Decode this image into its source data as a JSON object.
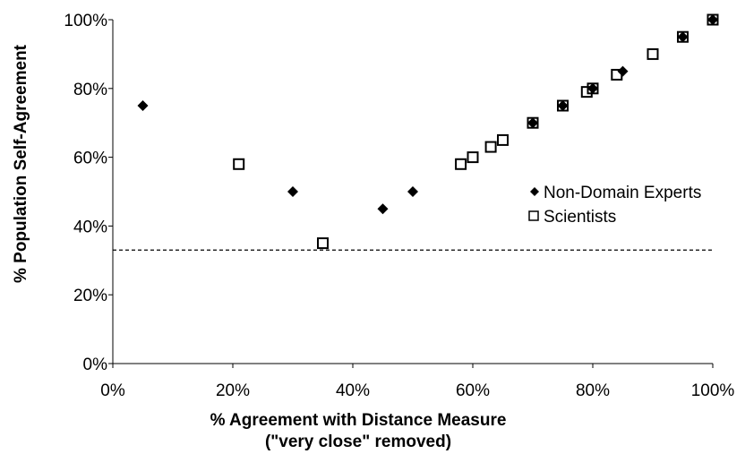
{
  "chart_data": {
    "type": "scatter",
    "xlabel_lines": [
      "% Agreement with Distance Measure",
      "(\"very close\" removed)"
    ],
    "ylabel": "% Population Self-Agreement",
    "xlim": [
      0,
      100
    ],
    "ylim": [
      0,
      100
    ],
    "x_ticks": [
      0,
      20,
      40,
      60,
      80,
      100
    ],
    "y_ticks": [
      0,
      20,
      40,
      60,
      80,
      100
    ],
    "x_tick_labels": [
      "0%",
      "20%",
      "40%",
      "60%",
      "80%",
      "100%"
    ],
    "y_tick_labels": [
      "0%",
      "20%",
      "40%",
      "60%",
      "80%",
      "100%"
    ],
    "grid": false,
    "legend_position": "right",
    "reference_line": {
      "y": 33,
      "style": "dashed"
    },
    "series": [
      {
        "name": "Non-Domain Experts",
        "marker": "diamond-filled",
        "points": [
          [
            5,
            75
          ],
          [
            30,
            50
          ],
          [
            45,
            45
          ],
          [
            50,
            50
          ],
          [
            70,
            70
          ],
          [
            75,
            75
          ],
          [
            80,
            80
          ],
          [
            85,
            85
          ],
          [
            95,
            95
          ],
          [
            100,
            100
          ]
        ]
      },
      {
        "name": "Scientists",
        "marker": "square-open",
        "points": [
          [
            21,
            58
          ],
          [
            35,
            35
          ],
          [
            58,
            58
          ],
          [
            60,
            60
          ],
          [
            63,
            63
          ],
          [
            65,
            65
          ],
          [
            70,
            70
          ],
          [
            75,
            75
          ],
          [
            79,
            79
          ],
          [
            80,
            80
          ],
          [
            84,
            84
          ],
          [
            90,
            90
          ],
          [
            95,
            95
          ],
          [
            100,
            100
          ]
        ]
      }
    ]
  }
}
